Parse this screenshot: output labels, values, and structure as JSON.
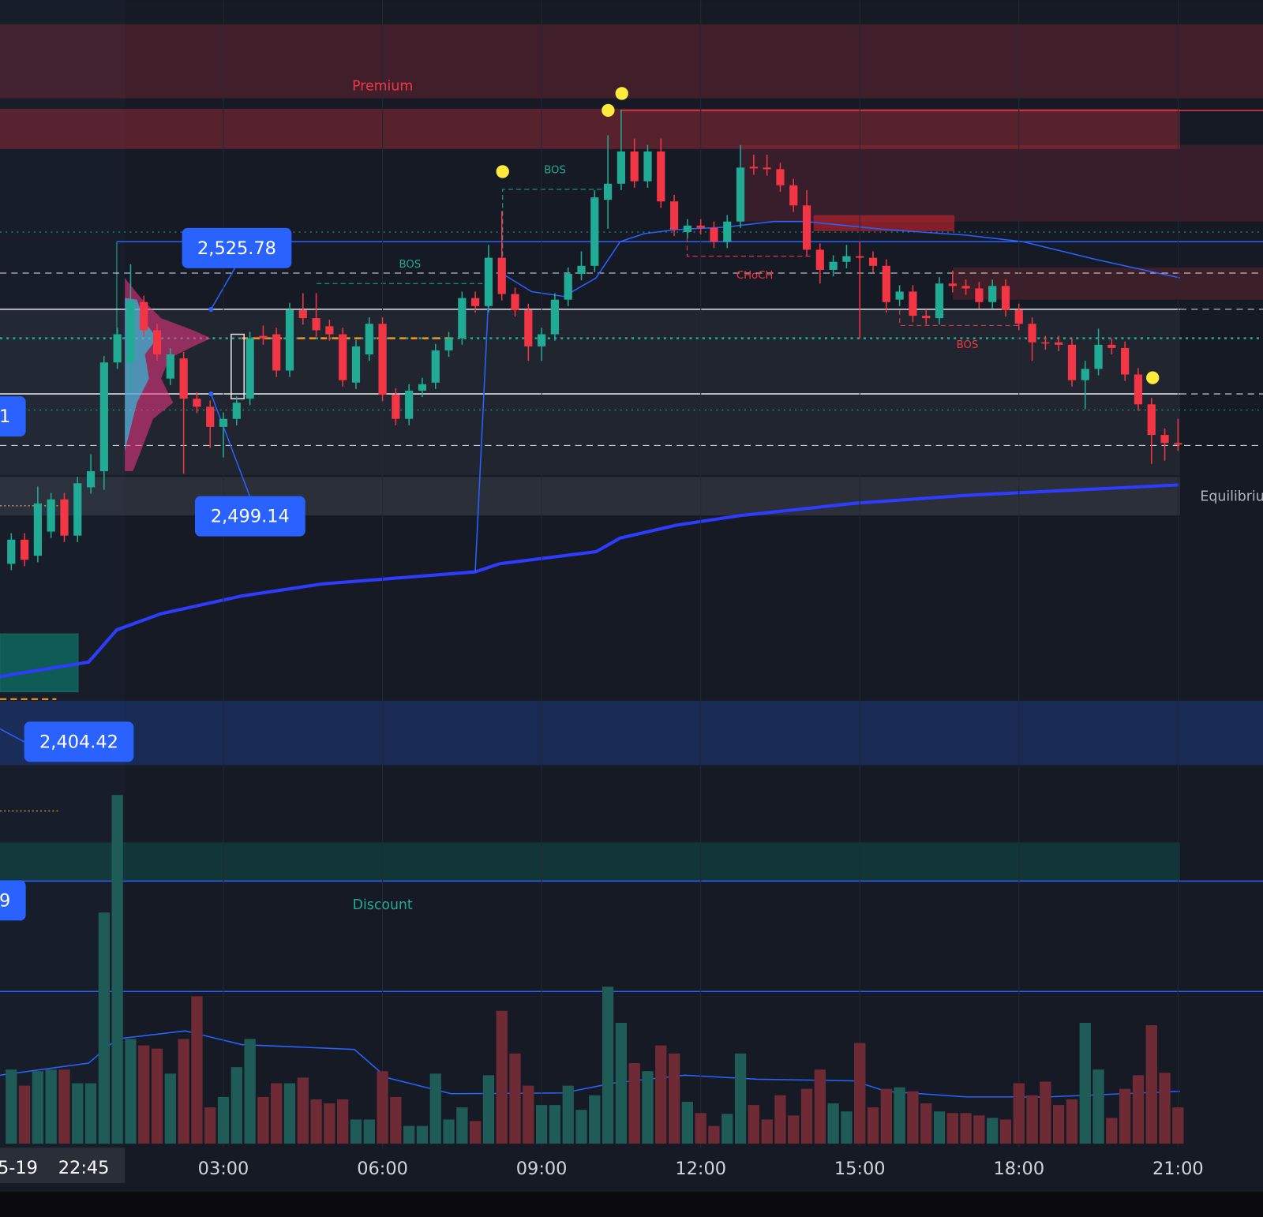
{
  "chart_data": {
    "type": "candlestick",
    "categories": [
      null,
      null,
      null,
      null,
      null,
      null,
      null,
      null,
      null,
      null,
      null,
      null,
      null,
      null,
      null,
      null,
      "03:00",
      null,
      null,
      null,
      null,
      null,
      null,
      null,
      null,
      null,
      null,
      null,
      "06:00",
      null,
      null,
      null,
      null,
      null,
      null,
      null,
      null,
      null,
      null,
      null,
      "09:00",
      null,
      null,
      null,
      null,
      null,
      null,
      null,
      null,
      null,
      null,
      null,
      "12:00",
      null,
      null,
      null,
      null,
      null,
      null,
      null,
      null,
      null,
      null,
      null,
      "15:00",
      null,
      null,
      null,
      null,
      null,
      null,
      null,
      null,
      null,
      null,
      null,
      "18:00",
      null,
      null,
      null,
      null,
      null,
      null,
      null,
      null,
      null,
      null,
      null,
      "21:00"
    ],
    "open": [
      2447,
      2454.5,
      2449.5,
      2457,
      2467,
      2455.75,
      2470.75,
      2475.75,
      2509.5,
      2509.5,
      2528.25,
      2519.5,
      2504.5,
      2510.75,
      2498.25,
      2495.75,
      2489.5,
      2492,
      2498.25,
      2517.75,
      2518.25,
      2507,
      2525.75,
      2523.25,
      2520.75,
      2518.25,
      2503.25,
      2512,
      2521.5,
      2499.5,
      2492,
      2500.75,
      2503.25,
      2513.25,
      2517,
      2529.5,
      2527,
      2542,
      2530.75,
      2525.75,
      2514.5,
      2518.25,
      2529,
      2537,
      2539.5,
      2560,
      2565,
      2575,
      2565.75,
      2575,
      2559.5,
      2550,
      2552,
      2551.25,
      2547,
      2553.25,
      2570.25,
      2570,
      2569.5,
      2564.5,
      2558.25,
      2544.5,
      2538.25,
      2540.75,
      2542.5,
      2542,
      2539.5,
      2529,
      2531.5,
      2524,
      2523.25,
      2534,
      2533.25,
      2532.5,
      2528.25,
      2533.25,
      2525.75,
      2521.5,
      2515.75,
      2515.75,
      2515,
      2504,
      2507.5,
      2515,
      2514,
      2505.75,
      2496.5,
      2487,
      2484.5
    ],
    "high": [
      2456.5,
      2456.5,
      2471,
      2469,
      2469,
      2474,
      2481,
      2511.5,
      2520.25,
      2540,
      2530.25,
      2521.5,
      2514,
      2512.75,
      2500.25,
      2497.75,
      2494,
      2499,
      2519,
      2521,
      2520.25,
      2528,
      2531,
      2531,
      2522.75,
      2520.25,
      2516.5,
      2523.5,
      2523.5,
      2501.5,
      2502.75,
      2504.75,
      2515.25,
      2519,
      2531.5,
      2531.5,
      2546,
      2556.5,
      2532.75,
      2527.75,
      2520.25,
      2531,
      2539,
      2544,
      2563,
      2580,
      2588,
      2579,
      2577,
      2579,
      2561.5,
      2554,
      2554,
      2553.25,
      2555.25,
      2577,
      2574,
      2574,
      2571.5,
      2566.5,
      2563,
      2546.5,
      2542.75,
      2546,
      2547,
      2544,
      2541.5,
      2533.5,
      2533.5,
      2526,
      2536,
      2538,
      2535.25,
      2534.5,
      2535.25,
      2535.25,
      2527.75,
      2523.5,
      2517.75,
      2517.75,
      2517,
      2510,
      2520,
      2517,
      2516,
      2507.75,
      2498.5,
      2489,
      2492
    ],
    "low": [
      2445,
      2446.25,
      2447.5,
      2455,
      2453.75,
      2453.75,
      2468.75,
      2470,
      2507.5,
      2500,
      2517.5,
      2510,
      2502.5,
      2475,
      2493.75,
      2483,
      2480,
      2490,
      2496.25,
      2515,
      2505,
      2505,
      2521.25,
      2517.5,
      2516.25,
      2502,
      2501.25,
      2510,
      2497.5,
      2490,
      2490,
      2498.75,
      2501.25,
      2511.25,
      2515,
      2525,
      2525,
      2528.75,
      2523.75,
      2510,
      2510,
      2516.25,
      2527,
      2535,
      2537.5,
      2551,
      2563,
      2563.75,
      2563.75,
      2557.5,
      2548.75,
      2548,
      2549.25,
      2545,
      2545,
      2551.25,
      2567.75,
      2567.5,
      2562.5,
      2556.25,
      2542.5,
      2534,
      2536.25,
      2538.75,
      2517,
      2537.5,
      2525,
      2527,
      2522,
      2521.25,
      2521.25,
      2531.25,
      2530.5,
      2526.25,
      2526.25,
      2523.75,
      2519.5,
      2510,
      2513.5,
      2513,
      2502,
      2495,
      2505.5,
      2512,
      2503.75,
      2494.5,
      2478,
      2479,
      2482
    ],
    "close": [
      2454.5,
      2448.25,
      2465.75,
      2467,
      2455.75,
      2472,
      2475.75,
      2509.5,
      2518.25,
      2528.25,
      2519.5,
      2512,
      2512,
      2498.25,
      2495.75,
      2489.5,
      2492,
      2497,
      2517,
      2517,
      2507,
      2525.75,
      2523.25,
      2519.5,
      2518.25,
      2504,
      2514.5,
      2521.5,
      2499.5,
      2492,
      2500.75,
      2502.75,
      2513.25,
      2517,
      2529.5,
      2527,
      2542,
      2530.75,
      2525.75,
      2514.5,
      2518.25,
      2529,
      2537,
      2539.5,
      2560.75,
      2565,
      2575,
      2565.75,
      2575,
      2559.5,
      2550.75,
      2552,
      2551.25,
      2547,
      2553.25,
      2570,
      2569.75,
      2569.5,
      2564.5,
      2558.25,
      2544.5,
      2538.25,
      2540.75,
      2542.5,
      2542,
      2539.5,
      2528.25,
      2531.5,
      2524,
      2523.25,
      2534,
      2533.25,
      2532.5,
      2528.25,
      2533.25,
      2525.75,
      2521.5,
      2515.75,
      2515.5,
      2515,
      2504,
      2507.5,
      2515,
      2514,
      2505.75,
      2496.5,
      2487,
      2484.5,
      2484
    ],
    "ylim": [
      2266,
      2622
    ],
    "up_color": "#22ab94",
    "down_color": "#f23645",
    "volume": {
      "values": [
        92,
        72,
        90,
        92,
        92,
        75,
        75,
        287,
        433,
        130,
        122,
        118,
        87,
        130,
        183,
        45,
        58,
        95,
        130,
        58,
        75,
        75,
        82,
        55,
        50,
        55,
        30,
        30,
        90,
        58,
        22,
        22,
        87,
        30,
        45,
        28,
        85,
        165,
        112,
        72,
        48,
        48,
        72,
        42,
        60,
        195,
        150,
        100,
        90,
        122,
        112,
        52,
        38,
        22,
        37,
        112,
        48,
        30,
        60,
        35,
        68,
        92,
        50,
        40,
        125,
        45,
        68,
        70,
        65,
        50,
        40,
        38,
        38,
        35,
        32,
        30,
        75,
        60,
        77,
        48,
        55,
        150,
        92,
        32,
        68,
        85,
        147,
        88,
        45
      ],
      "ylim": [
        0,
        450
      ],
      "up_color": "#1f5c58",
      "down_color": "#6e2b35"
    },
    "annotations": [
      "Premium",
      "BOS",
      "BOS",
      "CHoCH",
      "BOS",
      "Equilibrium",
      "Discount"
    ],
    "price_labels": [
      "2,525.78",
      "2,499.14",
      "2,404.42",
      "1",
      "9"
    ],
    "cursor_time": [
      "5-19",
      "22:45"
    ]
  }
}
